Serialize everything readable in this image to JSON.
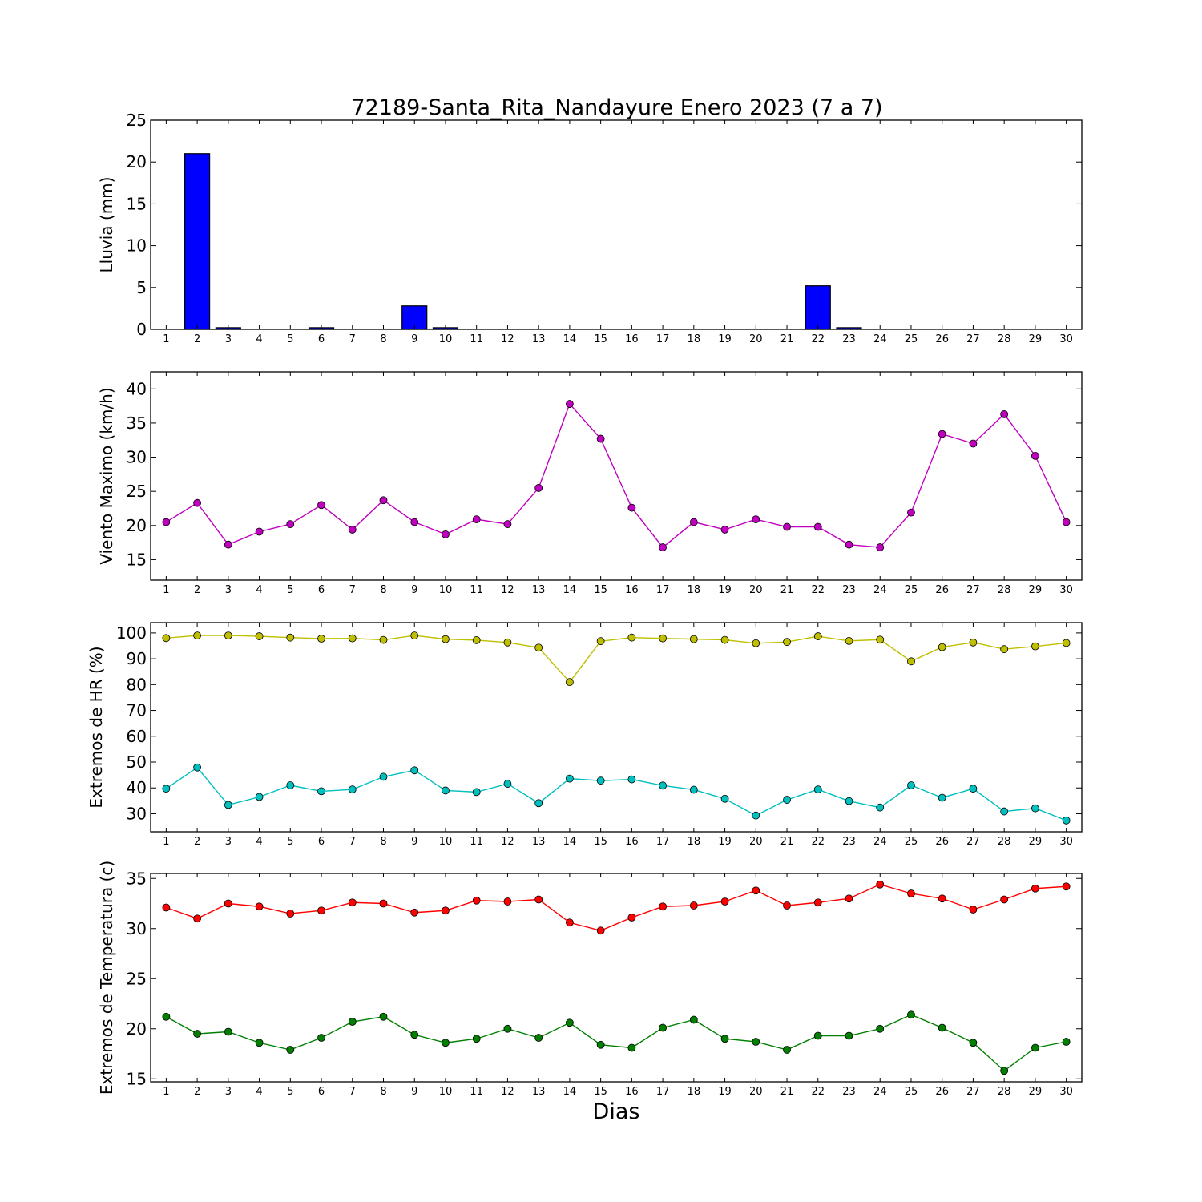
{
  "chart_data": [
    {
      "type": "bar",
      "title": "72189-Santa_Rita_Nandayure Enero 2023  (7 a 7)",
      "ylabel": "Lluvia (mm)",
      "xlabel": "",
      "ylim": [
        0,
        25
      ],
      "yticks": [
        0,
        5,
        10,
        15,
        20,
        25
      ],
      "x": [
        1,
        2,
        3,
        4,
        5,
        6,
        7,
        8,
        9,
        10,
        11,
        12,
        13,
        14,
        15,
        16,
        17,
        18,
        19,
        20,
        21,
        22,
        23,
        24,
        25,
        26,
        27,
        28,
        29,
        30
      ],
      "series": [
        {
          "color": "#0000ff",
          "values": [
            0,
            21.0,
            0.2,
            0,
            0,
            0.2,
            0,
            0,
            2.8,
            0.2,
            0,
            0,
            0,
            0,
            0,
            0,
            0,
            0,
            0,
            0,
            0,
            5.2,
            0.2,
            0,
            0,
            0,
            0,
            0,
            0,
            0
          ]
        }
      ],
      "grid": false
    },
    {
      "type": "line",
      "title": "",
      "ylabel": "Viento Maximo (km/h)",
      "xlabel": "",
      "ylim": [
        12,
        42.5
      ],
      "yticks": [
        15,
        20,
        25,
        30,
        35,
        40
      ],
      "x": [
        1,
        2,
        3,
        4,
        5,
        6,
        7,
        8,
        9,
        10,
        11,
        12,
        13,
        14,
        15,
        16,
        17,
        18,
        19,
        20,
        21,
        22,
        23,
        24,
        25,
        26,
        27,
        28,
        29,
        30
      ],
      "series": [
        {
          "color": "#bf00bf",
          "values": [
            20.5,
            23.3,
            17.2,
            19.1,
            20.2,
            23.0,
            19.4,
            23.7,
            20.5,
            18.7,
            20.9,
            20.2,
            25.5,
            37.8,
            32.7,
            22.6,
            16.8,
            20.5,
            19.4,
            20.9,
            19.8,
            19.8,
            17.2,
            16.8,
            21.9,
            33.4,
            32.0,
            36.3,
            30.2,
            20.5
          ]
        }
      ],
      "grid": false
    },
    {
      "type": "line",
      "title": "",
      "ylabel": "Extremos de HR (%)",
      "xlabel": "",
      "ylim": [
        23,
        104
      ],
      "yticks": [
        30,
        40,
        50,
        60,
        70,
        80,
        90,
        100
      ],
      "x": [
        1,
        2,
        3,
        4,
        5,
        6,
        7,
        8,
        9,
        10,
        11,
        12,
        13,
        14,
        15,
        16,
        17,
        18,
        19,
        20,
        21,
        22,
        23,
        24,
        25,
        26,
        27,
        28,
        29,
        30
      ],
      "series": [
        {
          "color": "#bfbf00",
          "values": [
            98,
            99,
            99,
            98.7,
            98.2,
            97.8,
            97.9,
            97.3,
            99,
            97.6,
            97.2,
            96.3,
            94.3,
            81,
            96.8,
            98.2,
            97.9,
            97.6,
            97.3,
            96,
            96.5,
            98.7,
            96.9,
            97.4,
            89,
            94.5,
            96.3,
            93.7,
            94.8,
            96.1
          ]
        },
        {
          "color": "#00bfbf",
          "values": [
            39.7,
            47.9,
            33.4,
            36.5,
            41,
            38.7,
            39.4,
            44.3,
            46.8,
            39,
            38.4,
            41.6,
            34.1,
            43.6,
            42.8,
            43.3,
            40.9,
            39.3,
            35.8,
            29.3,
            35.4,
            39.4,
            34.9,
            32.4,
            41,
            36.2,
            39.7,
            30.9,
            32.1,
            27.4
          ]
        }
      ],
      "grid": false
    },
    {
      "type": "line",
      "title": "",
      "ylabel": "Extremos de Temperatura (c)",
      "xlabel": "Dias",
      "ylim": [
        14.7,
        35.5
      ],
      "yticks": [
        15,
        20,
        25,
        30,
        35
      ],
      "x": [
        1,
        2,
        3,
        4,
        5,
        6,
        7,
        8,
        9,
        10,
        11,
        12,
        13,
        14,
        15,
        16,
        17,
        18,
        19,
        20,
        21,
        22,
        23,
        24,
        25,
        26,
        27,
        28,
        29,
        30
      ],
      "series": [
        {
          "color": "#ff0000",
          "values": [
            32.1,
            31.0,
            32.5,
            32.2,
            31.5,
            31.8,
            32.6,
            32.5,
            31.6,
            31.8,
            32.8,
            32.7,
            32.9,
            30.6,
            29.8,
            31.1,
            32.2,
            32.3,
            32.7,
            33.8,
            32.3,
            32.6,
            33.0,
            34.4,
            33.5,
            33.0,
            31.9,
            32.9,
            34.0,
            34.2
          ]
        },
        {
          "color": "#007f00",
          "values": [
            21.2,
            19.5,
            19.7,
            18.6,
            17.9,
            19.1,
            20.7,
            21.2,
            19.4,
            18.6,
            19.0,
            20.0,
            19.1,
            20.6,
            18.4,
            18.1,
            20.1,
            20.9,
            19.0,
            18.7,
            17.9,
            19.3,
            19.3,
            20.0,
            21.4,
            20.1,
            18.6,
            15.8,
            18.1,
            18.7
          ]
        }
      ],
      "grid": false
    }
  ]
}
